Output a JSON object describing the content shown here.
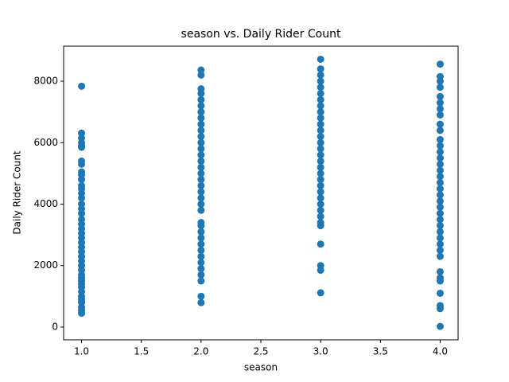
{
  "chart_data": {
    "type": "scatter",
    "title": "season vs. Daily Rider Count",
    "x_label": "season",
    "y_label": "Daily Rider Count",
    "color": "#1f77b4",
    "grid": false,
    "xlim": [
      0.85,
      4.15
    ],
    "ylim": [
      -415,
      9140
    ],
    "xticks": [
      {
        "value": 1,
        "label": "1.0"
      },
      1.5,
      {
        "value": 2,
        "label": "2.0"
      },
      2.5,
      {
        "value": 3,
        "label": "3.0"
      },
      3.5,
      {
        "value": 4,
        "label": "4.0"
      }
    ],
    "yticks": [
      0,
      2000,
      4000,
      6000,
      8000
    ],
    "x": [
      1,
      1,
      1,
      1,
      1,
      1,
      1,
      1,
      1,
      1,
      1,
      1,
      1,
      1,
      1,
      1,
      1,
      1,
      1,
      1,
      1,
      1,
      1,
      1,
      1,
      1,
      1,
      1,
      1,
      1,
      1,
      1,
      1,
      1,
      1,
      1,
      1,
      1,
      1,
      1,
      1,
      1,
      2,
      2,
      2,
      2,
      2,
      2,
      2,
      2,
      2,
      2,
      2,
      2,
      2,
      2,
      2,
      2,
      2,
      2,
      2,
      2,
      2,
      2,
      2,
      2,
      2,
      2,
      2,
      2,
      2,
      2,
      2,
      2,
      2,
      2,
      2,
      2,
      3,
      3,
      3,
      3,
      3,
      3,
      3,
      3,
      3,
      3,
      3,
      3,
      3,
      3,
      3,
      3,
      3,
      3,
      3,
      3,
      3,
      3,
      3,
      3,
      3,
      3,
      3,
      3,
      3,
      3,
      3,
      3,
      4,
      4,
      4,
      4,
      4,
      4,
      4,
      4,
      4,
      4,
      4,
      4,
      4,
      4,
      4,
      4,
      4,
      4,
      4,
      4,
      4,
      4,
      4,
      4,
      4,
      4,
      4,
      4,
      4,
      4,
      4,
      4,
      4,
      4,
      4,
      4,
      4
    ],
    "values": [
      7836,
      6312,
      6150,
      6000,
      5900,
      5850,
      5400,
      5300,
      5050,
      4950,
      4800,
      4600,
      4500,
      4350,
      4200,
      4000,
      3850,
      3700,
      3500,
      3350,
      3200,
      3050,
      2900,
      2750,
      2600,
      2450,
      2300,
      2150,
      2000,
      1850,
      1700,
      1600,
      1500,
      1400,
      1300,
      1150,
      1000,
      900,
      800,
      650,
      550,
      450,
      8362,
      8200,
      7750,
      7600,
      7400,
      7200,
      7000,
      6800,
      6600,
      6400,
      6200,
      6000,
      5800,
      5600,
      5400,
      5200,
      5000,
      4800,
      4600,
      4400,
      4200,
      4000,
      3800,
      3400,
      3300,
      3100,
      2900,
      2700,
      2500,
      2300,
      2100,
      1900,
      1700,
      1500,
      1000,
      795,
      8714,
      8400,
      8200,
      8000,
      7800,
      7600,
      7400,
      7200,
      7000,
      6800,
      6600,
      6400,
      6200,
      6000,
      5800,
      5600,
      5400,
      5200,
      5000,
      4800,
      4600,
      4400,
      4200,
      4000,
      3800,
      3600,
      3400,
      3300,
      2700,
      2000,
      1850,
      1115,
      8555,
      8150,
      8000,
      7800,
      7500,
      7300,
      7100,
      6900,
      6600,
      6400,
      6100,
      5900,
      5700,
      5500,
      5300,
      5100,
      4900,
      4700,
      4500,
      4300,
      4100,
      3900,
      3700,
      3500,
      3300,
      3100,
      2900,
      2700,
      2500,
      2300,
      1800,
      1600,
      1500,
      1100,
      700,
      600,
      22
    ]
  }
}
